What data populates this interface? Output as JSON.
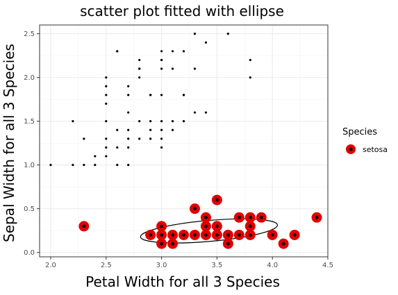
{
  "chart_data": {
    "type": "scatter",
    "title": "scatter plot fitted with ellipse",
    "xlabel": "Petal Width for all 3 Species",
    "ylabel": "Sepal Width for all 3 Species",
    "xlim": [
      1.9,
      4.5
    ],
    "ylim": [
      -0.05,
      2.6
    ],
    "x_ticks": [
      "2.0",
      "2.5",
      "3.0",
      "3.5",
      "4.0",
      "4.5"
    ],
    "y_ticks": [
      "0.0",
      "0.5",
      "1.0",
      "1.5",
      "2.0",
      "2.5"
    ],
    "grid": true,
    "legend": {
      "title": "Species",
      "position": "right"
    },
    "all_points": [
      [
        2.0,
        1.0
      ],
      [
        2.2,
        1.0
      ],
      [
        2.2,
        1.5
      ],
      [
        2.3,
        1.0
      ],
      [
        2.3,
        1.3
      ],
      [
        2.4,
        1.0
      ],
      [
        2.4,
        1.1
      ],
      [
        2.5,
        1.1
      ],
      [
        2.5,
        1.2
      ],
      [
        2.5,
        1.3
      ],
      [
        2.5,
        1.5
      ],
      [
        2.5,
        1.7
      ],
      [
        2.5,
        1.8
      ],
      [
        2.5,
        1.9
      ],
      [
        2.5,
        2.0
      ],
      [
        2.6,
        1.0
      ],
      [
        2.6,
        1.2
      ],
      [
        2.6,
        1.4
      ],
      [
        2.6,
        2.3
      ],
      [
        2.7,
        1.0
      ],
      [
        2.7,
        1.2
      ],
      [
        2.7,
        1.3
      ],
      [
        2.7,
        1.4
      ],
      [
        2.7,
        1.6
      ],
      [
        2.7,
        1.8
      ],
      [
        2.7,
        1.9
      ],
      [
        2.8,
        1.3
      ],
      [
        2.8,
        1.5
      ],
      [
        2.8,
        2.0
      ],
      [
        2.8,
        2.1
      ],
      [
        2.8,
        2.2
      ],
      [
        2.9,
        1.3
      ],
      [
        2.9,
        1.4
      ],
      [
        2.9,
        1.5
      ],
      [
        2.9,
        1.8
      ],
      [
        3.0,
        1.2
      ],
      [
        3.0,
        1.3
      ],
      [
        3.0,
        1.4
      ],
      [
        3.0,
        1.5
      ],
      [
        3.0,
        1.8
      ],
      [
        3.0,
        2.1
      ],
      [
        3.0,
        2.2
      ],
      [
        3.0,
        2.3
      ],
      [
        3.1,
        1.4
      ],
      [
        3.1,
        1.5
      ],
      [
        3.1,
        2.3
      ],
      [
        3.2,
        1.5
      ],
      [
        3.2,
        1.8
      ],
      [
        3.2,
        2.3
      ],
      [
        3.3,
        1.6
      ],
      [
        3.3,
        2.1
      ],
      [
        3.3,
        2.5
      ],
      [
        3.4,
        1.6
      ],
      [
        3.4,
        2.4
      ],
      [
        3.6,
        2.5
      ],
      [
        3.8,
        2.0
      ],
      [
        3.8,
        2.2
      ],
      [
        2.6,
        2.3
      ],
      [
        3.1,
        2.1
      ],
      [
        2.9,
        1.8
      ],
      [
        2.8,
        2.1
      ],
      [
        3.0,
        2.2
      ],
      [
        3.2,
        1.8
      ]
    ],
    "series": [
      {
        "name": "setosa",
        "color": "#e00000",
        "points": [
          [
            2.3,
            0.3
          ],
          [
            2.9,
            0.2
          ],
          [
            3.0,
            0.1
          ],
          [
            3.0,
            0.2
          ],
          [
            3.0,
            0.3
          ],
          [
            3.1,
            0.1
          ],
          [
            3.1,
            0.2
          ],
          [
            3.2,
            0.2
          ],
          [
            3.3,
            0.2
          ],
          [
            3.3,
            0.5
          ],
          [
            3.4,
            0.2
          ],
          [
            3.4,
            0.3
          ],
          [
            3.4,
            0.4
          ],
          [
            3.5,
            0.2
          ],
          [
            3.5,
            0.3
          ],
          [
            3.5,
            0.6
          ],
          [
            3.6,
            0.1
          ],
          [
            3.6,
            0.2
          ],
          [
            3.7,
            0.2
          ],
          [
            3.7,
            0.4
          ],
          [
            3.8,
            0.2
          ],
          [
            3.8,
            0.3
          ],
          [
            3.8,
            0.4
          ],
          [
            3.9,
            0.4
          ],
          [
            4.0,
            0.2
          ],
          [
            4.1,
            0.1
          ],
          [
            4.2,
            0.2
          ],
          [
            4.4,
            0.4
          ]
        ]
      }
    ],
    "ellipse": {
      "cx": 3.428,
      "cy": 0.246,
      "rx": 0.62,
      "ry": 0.12,
      "angle_deg": 5
    },
    "colors": {
      "panel_border": "#333333",
      "grid": "#ebebeb",
      "point": "#000000",
      "highlight": "#e00000",
      "ellipse": "#000000"
    }
  }
}
